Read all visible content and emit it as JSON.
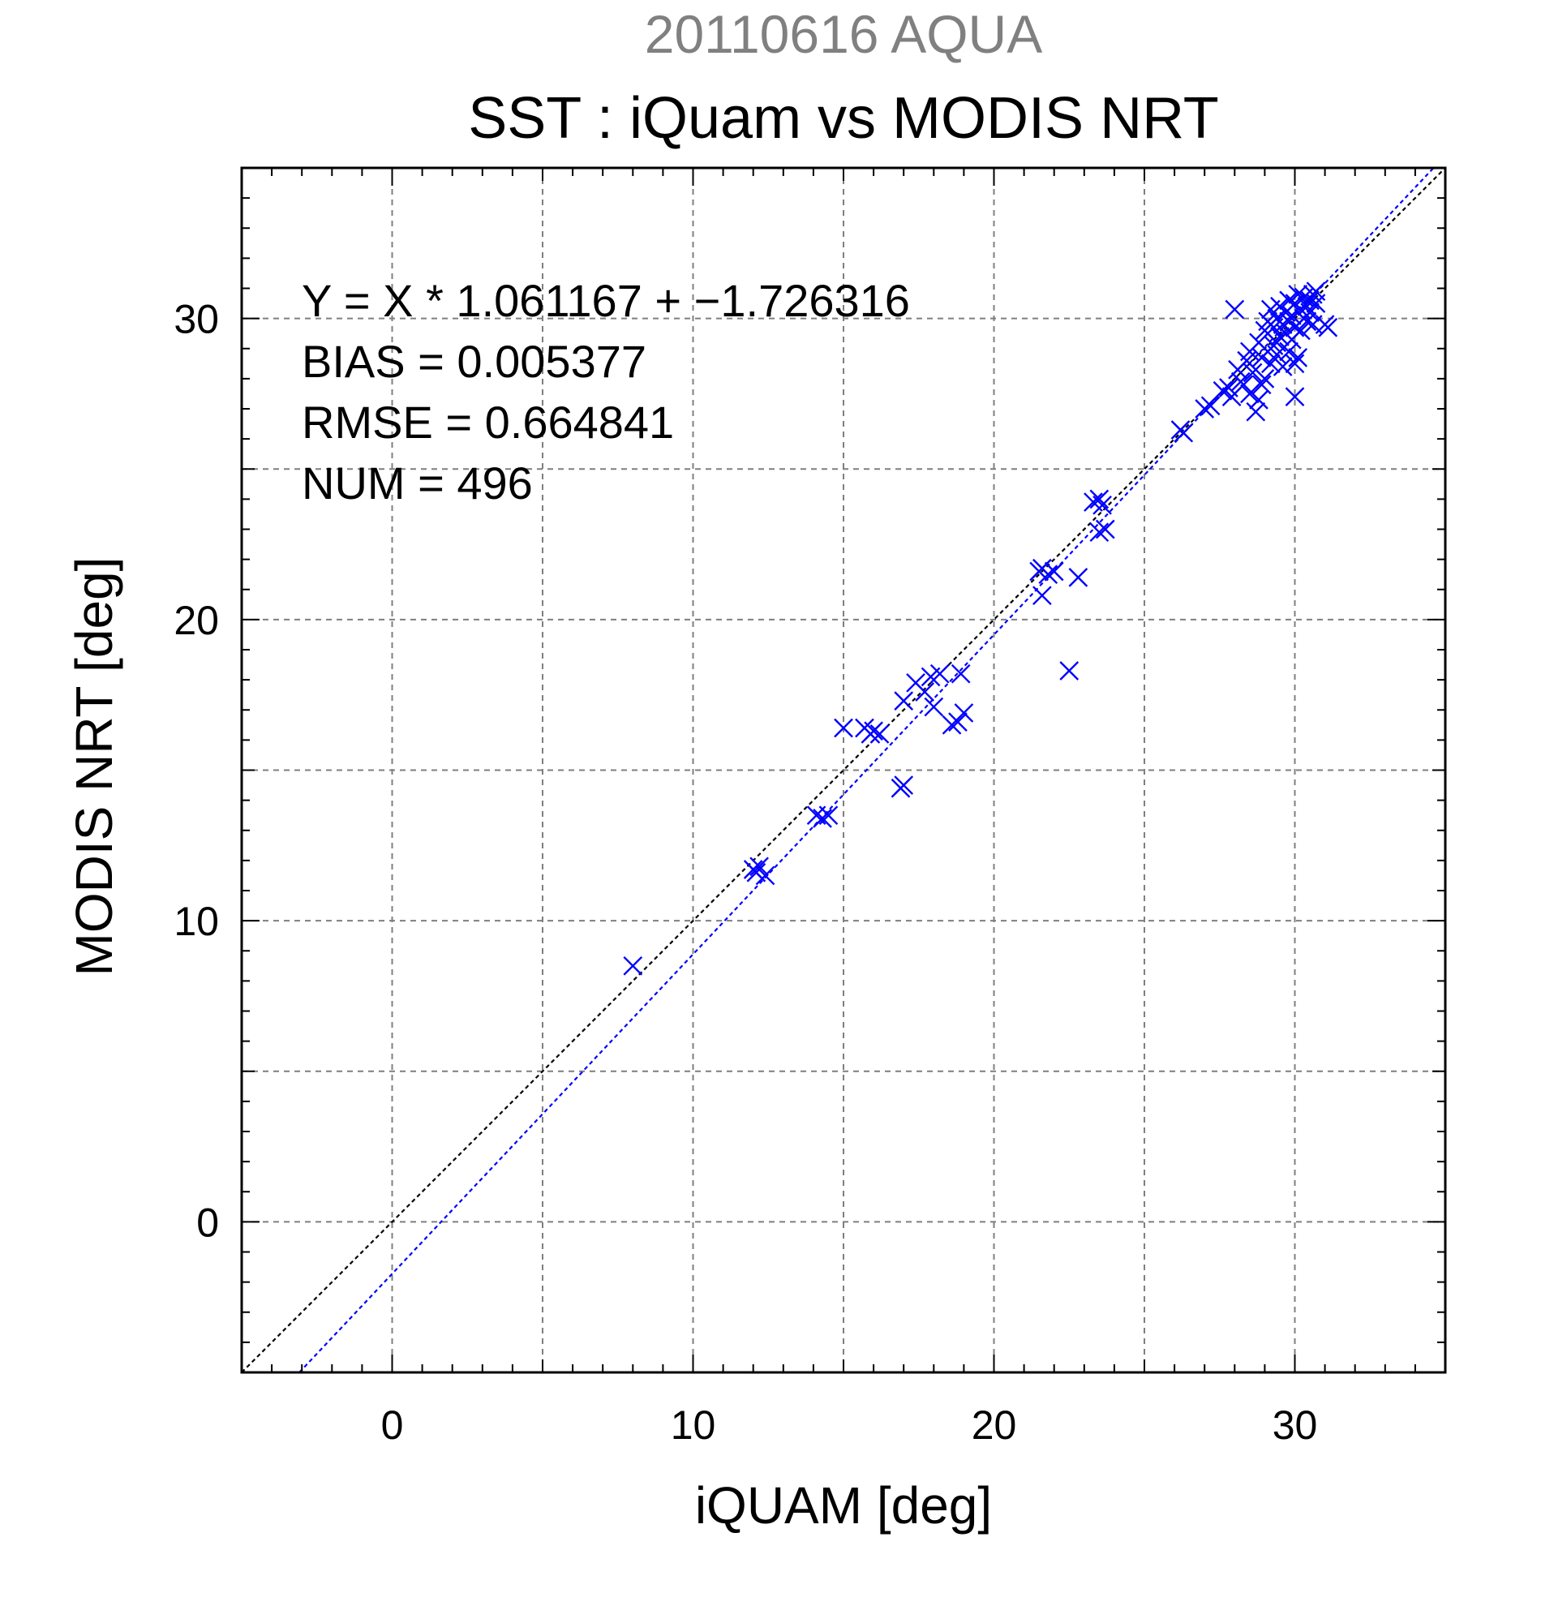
{
  "chart_data": {
    "type": "scatter",
    "supertitle": "20110616 AQUA",
    "title": "SST : iQuam vs MODIS NRT",
    "xlabel": "iQUAM [deg]",
    "ylabel": "MODIS NRT [deg]",
    "xlim": [
      -5,
      35
    ],
    "ylim": [
      -5,
      35
    ],
    "xticks": [
      0,
      10,
      20,
      30
    ],
    "yticks": [
      0,
      10,
      20,
      30
    ],
    "xtick_labels": [
      "0",
      "10",
      "20",
      "30"
    ],
    "ytick_labels": [
      "0",
      "10",
      "20",
      "30"
    ],
    "grid": true,
    "stats": {
      "equation": "Y = X * 1.061167 + −1.726316",
      "bias": "BIAS = 0.005377",
      "rmse": "RMSE = 0.664841",
      "num": "NUM = 496"
    },
    "reference_lines": [
      {
        "kind": "identity",
        "slope": 1,
        "intercept": 0,
        "color": "#000000"
      },
      {
        "kind": "regression",
        "slope": 1.061167,
        "intercept": -1.726316,
        "color": "#0000ff"
      }
    ],
    "series": [
      {
        "marker": "x",
        "color": "#0000ff",
        "points": [
          [
            8.0,
            8.5
          ],
          [
            12.0,
            11.7
          ],
          [
            12.2,
            11.8
          ],
          [
            12.4,
            11.5
          ],
          [
            12.1,
            11.6
          ],
          [
            14.1,
            13.5
          ],
          [
            14.3,
            13.4
          ],
          [
            14.5,
            13.5
          ],
          [
            15.0,
            16.4
          ],
          [
            15.7,
            16.4
          ],
          [
            15.9,
            16.2
          ],
          [
            16.0,
            16.3
          ],
          [
            16.2,
            16.2
          ],
          [
            16.9,
            14.4
          ],
          [
            17.0,
            14.5
          ],
          [
            17.0,
            17.3
          ],
          [
            17.4,
            17.9
          ],
          [
            17.7,
            17.6
          ],
          [
            17.9,
            18.1
          ],
          [
            18.0,
            17.1
          ],
          [
            18.2,
            18.2
          ],
          [
            18.6,
            16.5
          ],
          [
            18.8,
            16.6
          ],
          [
            19.0,
            16.9
          ],
          [
            18.9,
            18.2
          ],
          [
            21.5,
            21.6
          ],
          [
            21.6,
            21.7
          ],
          [
            21.6,
            20.8
          ],
          [
            21.8,
            21.5
          ],
          [
            22.0,
            21.6
          ],
          [
            22.5,
            18.3
          ],
          [
            22.8,
            21.4
          ],
          [
            23.3,
            23.9
          ],
          [
            23.5,
            24.0
          ],
          [
            23.5,
            22.9
          ],
          [
            23.7,
            23.0
          ],
          [
            23.6,
            23.8
          ],
          [
            26.2,
            26.3
          ],
          [
            26.3,
            26.2
          ],
          [
            27.0,
            27.0
          ],
          [
            27.2,
            27.1
          ],
          [
            27.6,
            27.6
          ],
          [
            27.8,
            27.7
          ],
          [
            27.9,
            27.4
          ],
          [
            28.0,
            30.3
          ],
          [
            28.1,
            28.3
          ],
          [
            28.2,
            27.9
          ],
          [
            28.3,
            27.8
          ],
          [
            28.4,
            28.6
          ],
          [
            28.5,
            28.9
          ],
          [
            28.5,
            27.5
          ],
          [
            28.6,
            28.2
          ],
          [
            28.7,
            26.9
          ],
          [
            28.8,
            27.3
          ],
          [
            28.8,
            29.2
          ],
          [
            28.9,
            28.7
          ],
          [
            28.9,
            27.8
          ],
          [
            29.0,
            29.6
          ],
          [
            29.1,
            28.9
          ],
          [
            29.1,
            29.9
          ],
          [
            29.2,
            28.5
          ],
          [
            29.2,
            30.3
          ],
          [
            29.3,
            29.1
          ],
          [
            29.3,
            29.7
          ],
          [
            29.4,
            30.0
          ],
          [
            29.4,
            28.8
          ],
          [
            29.5,
            29.4
          ],
          [
            29.5,
            30.4
          ],
          [
            29.6,
            29.8
          ],
          [
            29.6,
            28.4
          ],
          [
            29.7,
            30.2
          ],
          [
            29.7,
            29.5
          ],
          [
            29.8,
            30.6
          ],
          [
            29.8,
            29.9
          ],
          [
            29.9,
            29.3
          ],
          [
            29.9,
            30.1
          ],
          [
            30.0,
            30.5
          ],
          [
            30.0,
            27.4
          ],
          [
            30.0,
            29.7
          ],
          [
            30.1,
            30.8
          ],
          [
            30.1,
            28.7
          ],
          [
            30.2,
            30.3
          ],
          [
            30.2,
            29.6
          ],
          [
            30.3,
            30.0
          ],
          [
            30.3,
            30.7
          ],
          [
            30.4,
            30.4
          ],
          [
            30.4,
            29.9
          ],
          [
            30.5,
            30.6
          ],
          [
            30.5,
            30.2
          ],
          [
            30.6,
            30.8
          ],
          [
            30.6,
            29.8
          ],
          [
            30.7,
            30.5
          ],
          [
            30.7,
            30.9
          ],
          [
            31.0,
            29.8
          ],
          [
            31.1,
            29.7
          ],
          [
            29.0,
            28.0
          ],
          [
            29.4,
            29.2
          ],
          [
            29.8,
            28.9
          ],
          [
            30.0,
            28.5
          ]
        ]
      }
    ]
  }
}
